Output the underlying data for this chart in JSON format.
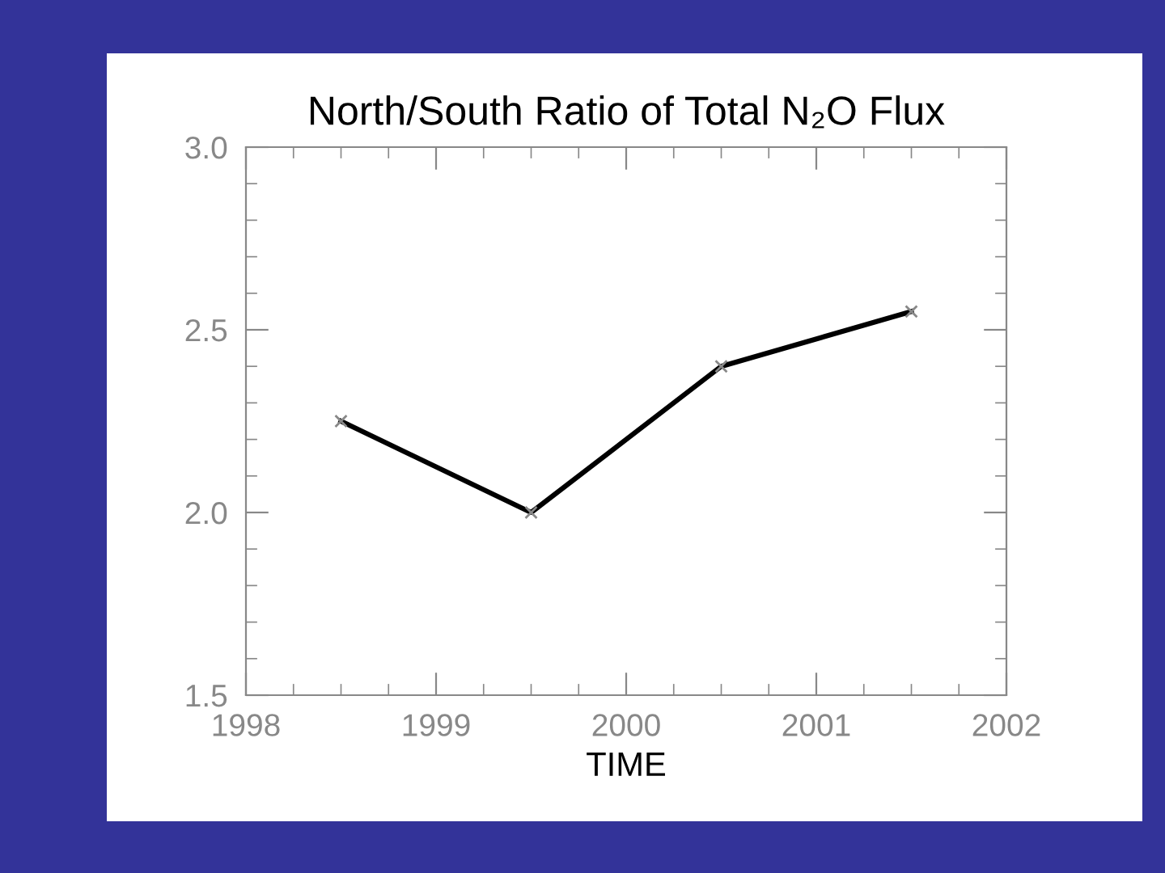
{
  "chart_data": {
    "type": "line",
    "title": "North/South Ratio of Total N₂O Flux",
    "xlabel": "TIME",
    "x": [
      1998.5,
      1999.5,
      2000.5,
      2001.5
    ],
    "series": [
      {
        "color": "#000000",
        "values": [
          2.25,
          2.0,
          2.4,
          2.55
        ]
      }
    ],
    "xlim": [
      1998,
      2002
    ],
    "xticks": [
      1998,
      1999,
      2000,
      2001,
      2002
    ],
    "ylim": [
      1.5,
      3.0
    ],
    "yticks": [
      {
        "value": 1.5,
        "label": "1.5"
      },
      {
        "value": 2.0,
        "label": "2.0"
      },
      {
        "value": 2.5,
        "label": "2.5"
      },
      {
        "value": 3.0,
        "label": "3.0"
      }
    ],
    "grid": false,
    "legend": false,
    "marker": "cross",
    "line_style": "solid"
  }
}
